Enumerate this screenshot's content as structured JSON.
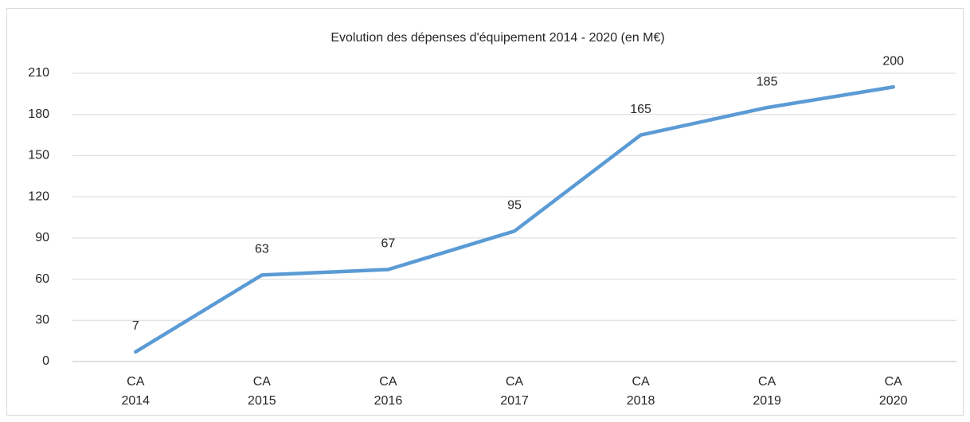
{
  "chart_data": {
    "type": "line",
    "title": "Evolution des dépenses d'équipement  2014 - 2020  (en M€)",
    "categories": [
      "CA 2014",
      "CA 2015",
      "CA 2016",
      "CA 2017",
      "CA 2018",
      "CA 2019",
      "CA 2020"
    ],
    "series": [
      {
        "name": "Dépenses d'équipement",
        "color": "#5b9bd5",
        "values": [
          7,
          63,
          67,
          95,
          165,
          185,
          200
        ]
      }
    ],
    "ylim": [
      0,
      210
    ],
    "yticks": [
      0,
      30,
      60,
      90,
      120,
      150,
      180,
      210
    ],
    "grid": true,
    "legend": false
  }
}
